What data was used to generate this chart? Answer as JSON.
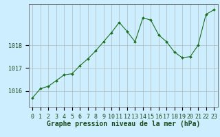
{
  "x": [
    0,
    1,
    2,
    3,
    4,
    5,
    6,
    7,
    8,
    9,
    10,
    11,
    12,
    13,
    14,
    15,
    16,
    17,
    18,
    19,
    20,
    21,
    22,
    23
  ],
  "y": [
    1015.7,
    1016.1,
    1016.2,
    1016.45,
    1016.7,
    1016.75,
    1017.1,
    1017.4,
    1017.75,
    1018.15,
    1018.55,
    1019.0,
    1018.6,
    1018.15,
    1019.2,
    1019.1,
    1018.45,
    1018.15,
    1017.7,
    1017.45,
    1017.5,
    1018.0,
    1019.35,
    1019.55
  ],
  "line_color": "#1a6e1a",
  "marker": "D",
  "marker_size": 2.0,
  "bg_color": "#cceeff",
  "grid_color": "#aaaaaa",
  "xlabel": "Graphe pression niveau de la mer (hPa)",
  "xlabel_fontsize": 7,
  "ylabel_ticks": [
    1016,
    1017,
    1018
  ],
  "ylim": [
    1015.3,
    1019.8
  ],
  "xlim": [
    -0.5,
    23.5
  ],
  "tick_fontsize": 6,
  "label_color": "#1a4a1a"
}
